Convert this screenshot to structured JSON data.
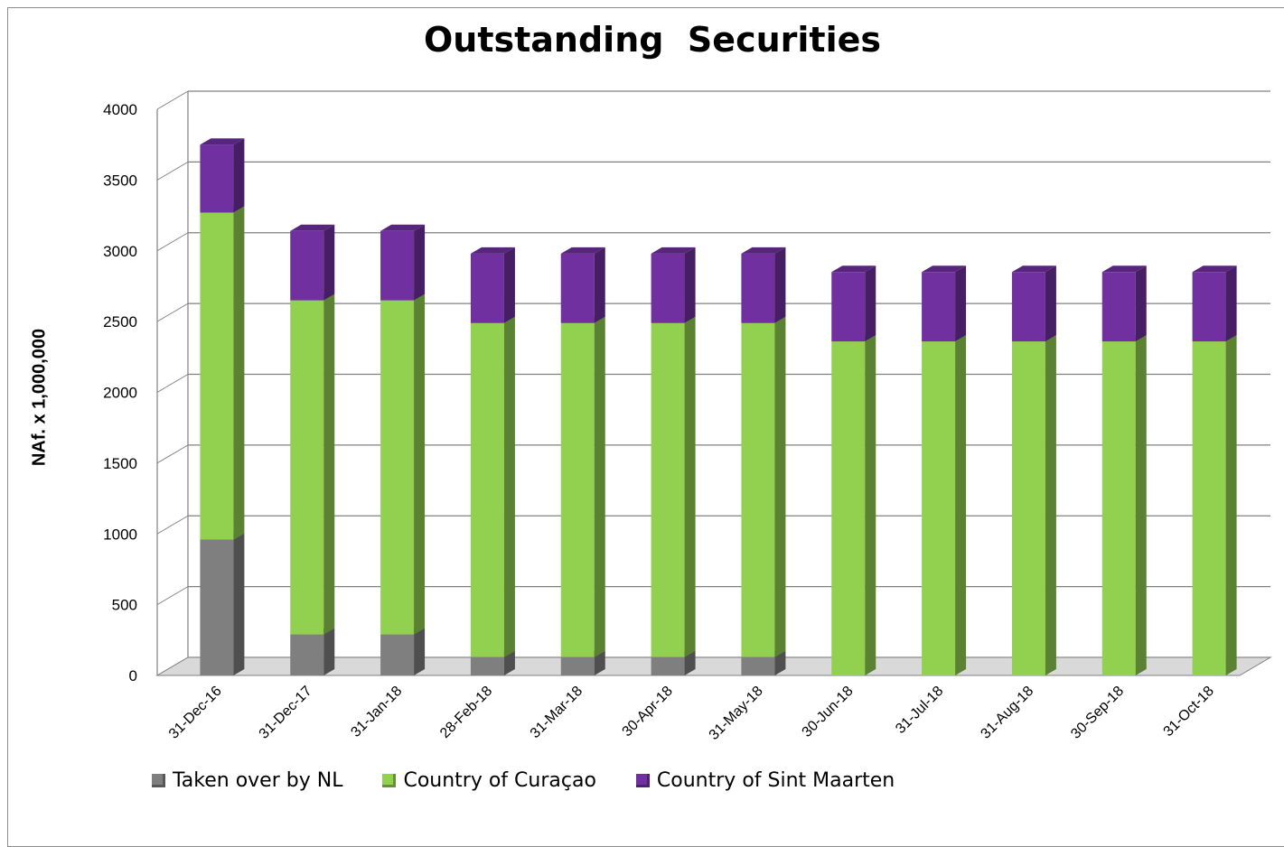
{
  "chart_data": {
    "type": "bar",
    "stacked": true,
    "three_d": true,
    "title": "Outstanding  Securities",
    "xlabel": "",
    "ylabel": "NAf. x 1,000,000",
    "ylim": [
      0,
      4000
    ],
    "yticks": [
      0,
      500,
      1000,
      1500,
      2000,
      2500,
      3000,
      3500,
      4000
    ],
    "grid": true,
    "legend_position": "bottom",
    "categories": [
      "31-Dec-16",
      "31-Dec-17",
      "31-Jan-18",
      "28-Feb-18",
      "31-Mar-18",
      "30-Apr-18",
      "31-May-18",
      "30-Jun-18",
      "31-Jul-18",
      "31-Aug-18",
      "30-Sep-18",
      "31-Oct-18"
    ],
    "series": [
      {
        "name": "Taken over by NL",
        "color": "#7f7f7f",
        "values": [
          960,
          290,
          290,
          130,
          130,
          130,
          130,
          0,
          0,
          0,
          0,
          0
        ]
      },
      {
        "name": "Country of Curaçao",
        "color": "#92d050",
        "values": [
          2310,
          2360,
          2360,
          2360,
          2360,
          2360,
          2360,
          2360,
          2360,
          2360,
          2360,
          2360
        ]
      },
      {
        "name": "Country of Sint Maarten",
        "color": "#7030a0",
        "values": [
          480,
          490,
          490,
          490,
          490,
          490,
          490,
          490,
          490,
          490,
          490,
          490
        ]
      }
    ]
  }
}
